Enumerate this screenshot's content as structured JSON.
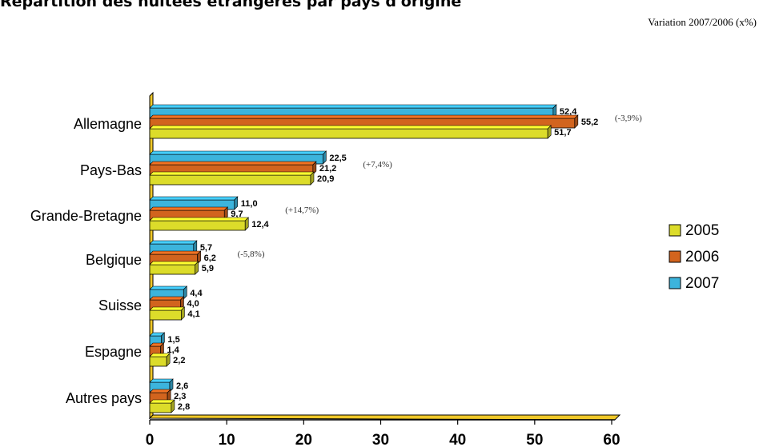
{
  "header": {
    "title": "Répartition des nuitées étrangères par pays d'origine",
    "subtitle": "Variation 2007/2006 (x%)"
  },
  "colors": {
    "2005": "#dcdc2a",
    "2006": "#d2641e",
    "2007": "#3cb4dc",
    "axis_wall": "#f0c828"
  },
  "chart_data": {
    "type": "bar",
    "orientation": "horizontal",
    "categories": [
      "Allemagne",
      "Pays-Bas",
      "Grande-Bretagne",
      "Belgique",
      "Suisse",
      "Espagne",
      "Autres pays"
    ],
    "series": [
      {
        "name": "2005",
        "values": [
          51.7,
          20.9,
          12.4,
          5.9,
          4.1,
          2.2,
          2.8
        ],
        "labels": [
          "51,7",
          "20,9",
          "12,4",
          "5,9",
          "4,1",
          "2,2",
          "2,8"
        ]
      },
      {
        "name": "2006",
        "values": [
          55.2,
          21.2,
          9.7,
          6.2,
          4.0,
          1.4,
          2.3
        ],
        "labels": [
          "55,2",
          "21,2",
          "9,7",
          "6,2",
          "4,0",
          "1,4",
          "2,3"
        ]
      },
      {
        "name": "2007",
        "values": [
          52.4,
          22.5,
          11.0,
          5.7,
          4.4,
          1.5,
          2.6
        ],
        "labels": [
          "52,4",
          "22,5",
          "11,0",
          "5,7",
          "4,4",
          "1,5",
          "2,6"
        ]
      }
    ],
    "variations": [
      "(-3,9%)",
      "(+7,4%)",
      "(+14,7%)",
      "(-5,8%)",
      "",
      "",
      ""
    ],
    "xticks": [
      "0",
      "10",
      "20",
      "30",
      "40",
      "50",
      "60"
    ],
    "xlim": [
      0,
      60
    ],
    "grid": false,
    "legend_position": "right",
    "legend": [
      "2005",
      "2006",
      "2007"
    ]
  }
}
